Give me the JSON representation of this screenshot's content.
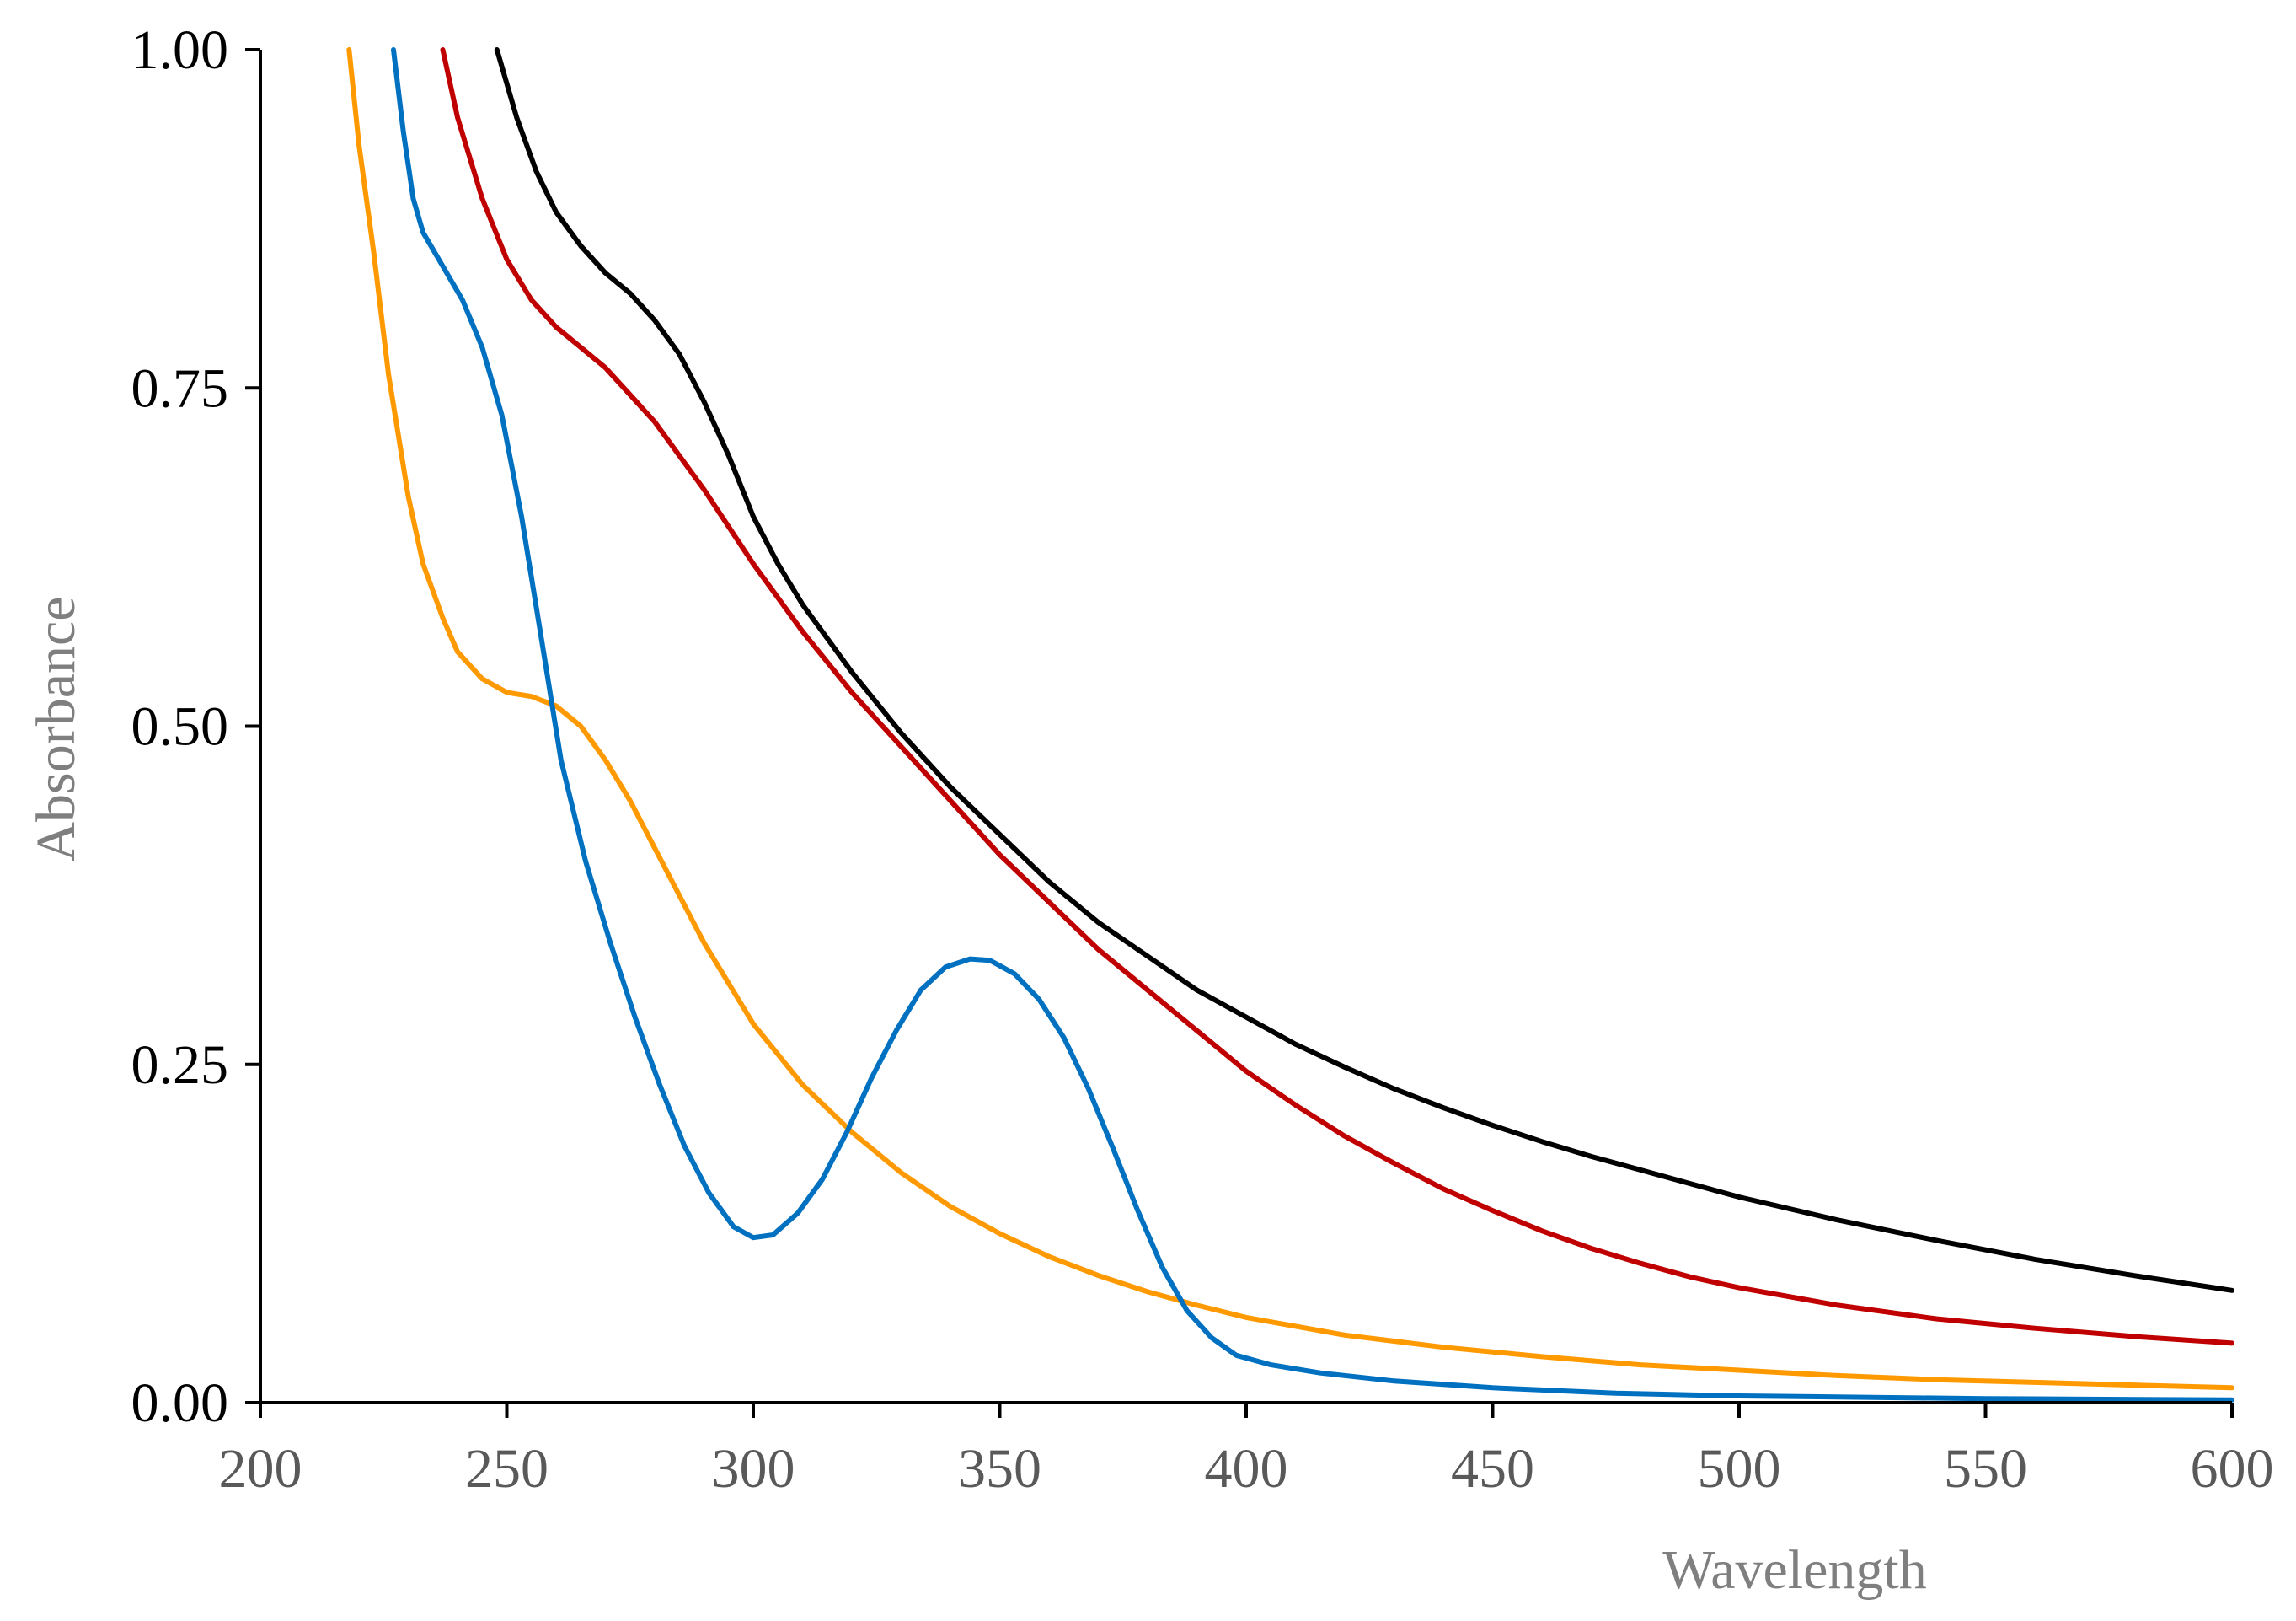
{
  "chart_data": {
    "type": "line",
    "title": "",
    "xlabel": "Wavelength",
    "ylabel": "Absorbance",
    "xlim": [
      200,
      600
    ],
    "ylim": [
      0,
      1
    ],
    "x_ticks": [
      200,
      250,
      300,
      350,
      400,
      450,
      500,
      550,
      600
    ],
    "x_tick_labels": [
      "200",
      "250",
      "300",
      "350",
      "400",
      "450",
      "500",
      "550",
      "600"
    ],
    "y_ticks": [
      0,
      0.25,
      0.5,
      0.75,
      1
    ],
    "y_tick_labels": [
      "0.00",
      "0.25",
      "0.50",
      "0.75",
      "1.00"
    ],
    "grid": false,
    "series": [
      {
        "name": "black",
        "color": "#000000",
        "points": [
          [
            248,
            1.0
          ],
          [
            252,
            0.95
          ],
          [
            256,
            0.91
          ],
          [
            260,
            0.88
          ],
          [
            265,
            0.855
          ],
          [
            270,
            0.835
          ],
          [
            275,
            0.82
          ],
          [
            280,
            0.8
          ],
          [
            285,
            0.775
          ],
          [
            290,
            0.74
          ],
          [
            295,
            0.7
          ],
          [
            300,
            0.655
          ],
          [
            305,
            0.62
          ],
          [
            310,
            0.59
          ],
          [
            320,
            0.54
          ],
          [
            330,
            0.495
          ],
          [
            340,
            0.455
          ],
          [
            350,
            0.42
          ],
          [
            360,
            0.385
          ],
          [
            370,
            0.355
          ],
          [
            380,
            0.33
          ],
          [
            390,
            0.305
          ],
          [
            400,
            0.285
          ],
          [
            410,
            0.265
          ],
          [
            420,
            0.248
          ],
          [
            430,
            0.232
          ],
          [
            440,
            0.218
          ],
          [
            450,
            0.205
          ],
          [
            460,
            0.193
          ],
          [
            470,
            0.182
          ],
          [
            480,
            0.172
          ],
          [
            490,
            0.162
          ],
          [
            500,
            0.152
          ],
          [
            520,
            0.135
          ],
          [
            540,
            0.12
          ],
          [
            560,
            0.106
          ],
          [
            580,
            0.094
          ],
          [
            600,
            0.083
          ]
        ]
      },
      {
        "name": "red",
        "color": "#c00000",
        "points": [
          [
            237,
            1.0
          ],
          [
            240,
            0.95
          ],
          [
            245,
            0.89
          ],
          [
            250,
            0.845
          ],
          [
            255,
            0.815
          ],
          [
            260,
            0.795
          ],
          [
            265,
            0.78
          ],
          [
            270,
            0.765
          ],
          [
            275,
            0.745
          ],
          [
            280,
            0.725
          ],
          [
            290,
            0.675
          ],
          [
            300,
            0.62
          ],
          [
            310,
            0.57
          ],
          [
            320,
            0.525
          ],
          [
            330,
            0.485
          ],
          [
            340,
            0.445
          ],
          [
            350,
            0.405
          ],
          [
            360,
            0.37
          ],
          [
            370,
            0.335
          ],
          [
            380,
            0.305
          ],
          [
            390,
            0.275
          ],
          [
            400,
            0.245
          ],
          [
            410,
            0.22
          ],
          [
            420,
            0.197
          ],
          [
            430,
            0.177
          ],
          [
            440,
            0.158
          ],
          [
            450,
            0.142
          ],
          [
            460,
            0.127
          ],
          [
            470,
            0.114
          ],
          [
            480,
            0.103
          ],
          [
            490,
            0.093
          ],
          [
            500,
            0.085
          ],
          [
            520,
            0.072
          ],
          [
            540,
            0.062
          ],
          [
            560,
            0.055
          ],
          [
            580,
            0.049
          ],
          [
            600,
            0.044
          ]
        ]
      },
      {
        "name": "orange",
        "color": "#ff9900",
        "points": [
          [
            218,
            1.0
          ],
          [
            220,
            0.93
          ],
          [
            223,
            0.85
          ],
          [
            226,
            0.76
          ],
          [
            230,
            0.67
          ],
          [
            233,
            0.62
          ],
          [
            237,
            0.58
          ],
          [
            240,
            0.555
          ],
          [
            245,
            0.535
          ],
          [
            250,
            0.525
          ],
          [
            255,
            0.522
          ],
          [
            260,
            0.515
          ],
          [
            265,
            0.5
          ],
          [
            270,
            0.475
          ],
          [
            275,
            0.445
          ],
          [
            280,
            0.41
          ],
          [
            290,
            0.34
          ],
          [
            300,
            0.28
          ],
          [
            310,
            0.235
          ],
          [
            320,
            0.2
          ],
          [
            330,
            0.17
          ],
          [
            340,
            0.145
          ],
          [
            350,
            0.125
          ],
          [
            360,
            0.108
          ],
          [
            370,
            0.094
          ],
          [
            380,
            0.082
          ],
          [
            390,
            0.072
          ],
          [
            400,
            0.063
          ],
          [
            420,
            0.05
          ],
          [
            440,
            0.041
          ],
          [
            460,
            0.034
          ],
          [
            480,
            0.028
          ],
          [
            500,
            0.024
          ],
          [
            520,
            0.02
          ],
          [
            540,
            0.017
          ],
          [
            560,
            0.015
          ],
          [
            580,
            0.013
          ],
          [
            600,
            0.011
          ]
        ]
      },
      {
        "name": "blue",
        "color": "#0070c0",
        "points": [
          [
            227,
            1.0
          ],
          [
            229,
            0.94
          ],
          [
            231,
            0.89
          ],
          [
            233,
            0.865
          ],
          [
            237,
            0.84
          ],
          [
            241,
            0.815
          ],
          [
            245,
            0.78
          ],
          [
            249,
            0.73
          ],
          [
            253,
            0.655
          ],
          [
            257,
            0.565
          ],
          [
            261,
            0.475
          ],
          [
            266,
            0.4
          ],
          [
            271,
            0.34
          ],
          [
            276,
            0.285
          ],
          [
            281,
            0.235
          ],
          [
            286,
            0.19
          ],
          [
            291,
            0.155
          ],
          [
            296,
            0.13
          ],
          [
            300,
            0.122
          ],
          [
            304,
            0.124
          ],
          [
            309,
            0.14
          ],
          [
            314,
            0.165
          ],
          [
            319,
            0.2
          ],
          [
            324,
            0.24
          ],
          [
            329,
            0.275
          ],
          [
            334,
            0.305
          ],
          [
            339,
            0.322
          ],
          [
            344,
            0.328
          ],
          [
            348,
            0.327
          ],
          [
            353,
            0.317
          ],
          [
            358,
            0.298
          ],
          [
            363,
            0.27
          ],
          [
            368,
            0.232
          ],
          [
            373,
            0.188
          ],
          [
            378,
            0.142
          ],
          [
            383,
            0.1
          ],
          [
            388,
            0.068
          ],
          [
            393,
            0.048
          ],
          [
            398,
            0.035
          ],
          [
            405,
            0.028
          ],
          [
            415,
            0.022
          ],
          [
            430,
            0.016
          ],
          [
            450,
            0.011
          ],
          [
            475,
            0.007
          ],
          [
            500,
            0.005
          ],
          [
            550,
            0.003
          ],
          [
            600,
            0.002
          ]
        ]
      }
    ]
  }
}
